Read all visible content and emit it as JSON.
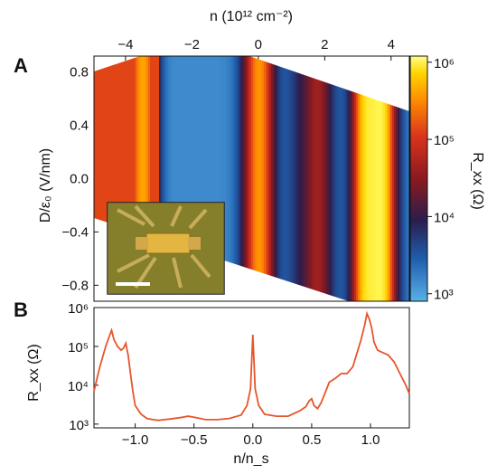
{
  "panel_a_label": "A",
  "panel_b_label": "B",
  "chart_data": [
    {
      "id": "A",
      "type": "heatmap",
      "x_top_label": "n (10¹² cm⁻²)",
      "x_top_ticks": [
        "−4",
        "−2",
        "0",
        "2",
        "4"
      ],
      "x_top_tick_values": [
        -4,
        -2,
        0,
        2,
        4
      ],
      "x_range": [
        -4.95,
        4.55
      ],
      "ylabel": "D/ε₀ (V/nm)",
      "y_ticks": [
        "0.8",
        "0.4",
        "0.0",
        "−0.4",
        "−0.8"
      ],
      "y_tick_values": [
        0.8,
        0.4,
        0.0,
        -0.4,
        -0.8
      ],
      "y_range": [
        -0.92,
        0.92
      ],
      "colorbar": {
        "label": "R_xx (Ω)",
        "scale": "log",
        "ticks": [
          "10⁶",
          "10⁵",
          "10⁴",
          "10³"
        ],
        "tick_values": [
          1000000,
          100000,
          10000,
          1000
        ],
        "range": [
          800,
          1200000
        ],
        "colormap": [
          "#5ab0e8",
          "#1f5fae",
          "#2b1d4e",
          "#8a1a1f",
          "#d9331c",
          "#ff8c00",
          "#ffd400",
          "#ffff66"
        ]
      },
      "data_region_n_at_top": [
        -4.0,
        4.3
      ],
      "features": [
        {
          "n": -3.5,
          "log10_R": 5.3
        },
        {
          "n": -2.4,
          "log10_R": 3.2
        },
        {
          "n": 0.0,
          "log10_R": 5.2
        },
        {
          "n": 1.2,
          "log10_R": 3.6
        },
        {
          "n": 1.75,
          "log10_R": 4.4
        },
        {
          "n": 3.3,
          "log10_R": 5.6
        },
        {
          "n": 3.6,
          "log10_R": 5.9
        }
      ],
      "inset": {
        "description_visible": false
      }
    },
    {
      "id": "B",
      "type": "line",
      "xlabel": "n/n_s",
      "ylabel": "R_xx (Ω)",
      "x_ticks": [
        "−1.0",
        "−0.5",
        "0.0",
        "0.5",
        "1.0"
      ],
      "x_tick_values": [
        -1.0,
        -0.5,
        0.0,
        0.5,
        1.0
      ],
      "x_range": [
        -1.35,
        1.33
      ],
      "y_scale": "log",
      "y_ticks": [
        "10⁶",
        "10⁵",
        "10⁴",
        "10³"
      ],
      "y_tick_values": [
        1000000,
        100000,
        10000,
        1000
      ],
      "y_range": [
        800,
        1000000
      ],
      "color": "#e8552c",
      "series": [
        {
          "x": [
            -1.35,
            -1.3,
            -1.25,
            -1.22,
            -1.2,
            -1.18,
            -1.15,
            -1.12,
            -1.1,
            -1.08,
            -1.06,
            -1.04,
            -1.02,
            -1.0,
            -0.95,
            -0.9,
            -0.85,
            -0.8,
            -0.75,
            -0.7,
            -0.6,
            -0.55,
            -0.5,
            -0.4,
            -0.3,
            -0.2,
            -0.1,
            -0.05,
            -0.02,
            0.0,
            0.02,
            0.05,
            0.1,
            0.2,
            0.3,
            0.4,
            0.45,
            0.48,
            0.5,
            0.52,
            0.55,
            0.58,
            0.62,
            0.65,
            0.7,
            0.75,
            0.8,
            0.85,
            0.88,
            0.92,
            0.95,
            0.97,
            0.99,
            1.01,
            1.03,
            1.06,
            1.1,
            1.15,
            1.2,
            1.25,
            1.3,
            1.33
          ],
          "y": [
            7000,
            30000,
            100000,
            180000,
            260000,
            150000,
            100000,
            80000,
            90000,
            120000,
            60000,
            20000,
            7000,
            3000,
            1800,
            1400,
            1300,
            1250,
            1300,
            1350,
            1500,
            1600,
            1500,
            1300,
            1300,
            1400,
            1700,
            3000,
            8000,
            200000,
            8000,
            3000,
            1800,
            1600,
            1600,
            2200,
            2800,
            4000,
            4500,
            3000,
            2500,
            3500,
            7000,
            12000,
            15000,
            20000,
            20000,
            30000,
            60000,
            150000,
            350000,
            700000,
            500000,
            300000,
            130000,
            80000,
            70000,
            60000,
            40000,
            20000,
            10000,
            6000
          ]
        }
      ]
    }
  ]
}
